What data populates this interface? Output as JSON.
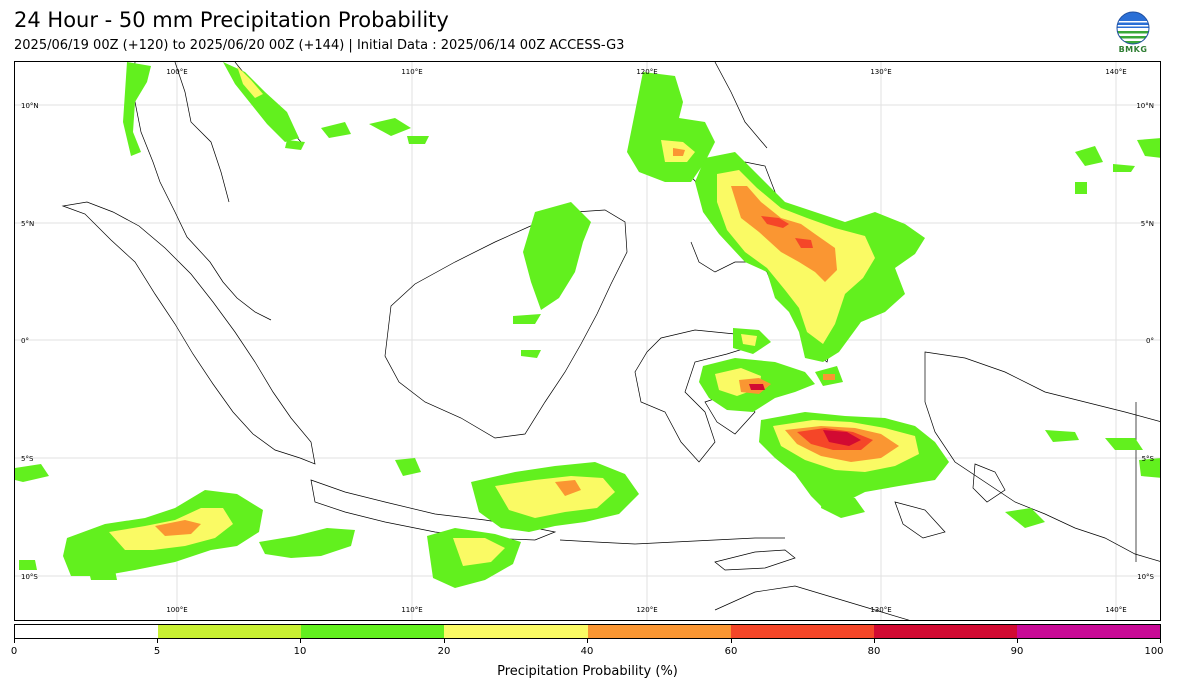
{
  "header": {
    "title": "24 Hour - 50 mm Precipitation Probability",
    "subtitle": "2025/06/19 00Z (+120) to 2025/06/20 00Z (+144) | Initial Data : 2025/06/14 00Z ACCESS-G3",
    "logo_text": "BMKG"
  },
  "map": {
    "lon_labels": [
      "100°E",
      "110°E",
      "120°E",
      "130°E",
      "140°E"
    ],
    "lat_labels": [
      "10°N",
      "5°N",
      "0°",
      "5°S",
      "10°S"
    ],
    "gridlines": true
  },
  "colorbar": {
    "label": "Precipitation Probability (%)",
    "ticks": [
      "0",
      "5",
      "10",
      "20",
      "40",
      "60",
      "80",
      "90",
      "100"
    ],
    "colors": [
      "#ffffff",
      "#c8f032",
      "#62f01e",
      "#fafa64",
      "#fa9632",
      "#f54628",
      "#d20a32",
      "#c80a96"
    ]
  }
}
